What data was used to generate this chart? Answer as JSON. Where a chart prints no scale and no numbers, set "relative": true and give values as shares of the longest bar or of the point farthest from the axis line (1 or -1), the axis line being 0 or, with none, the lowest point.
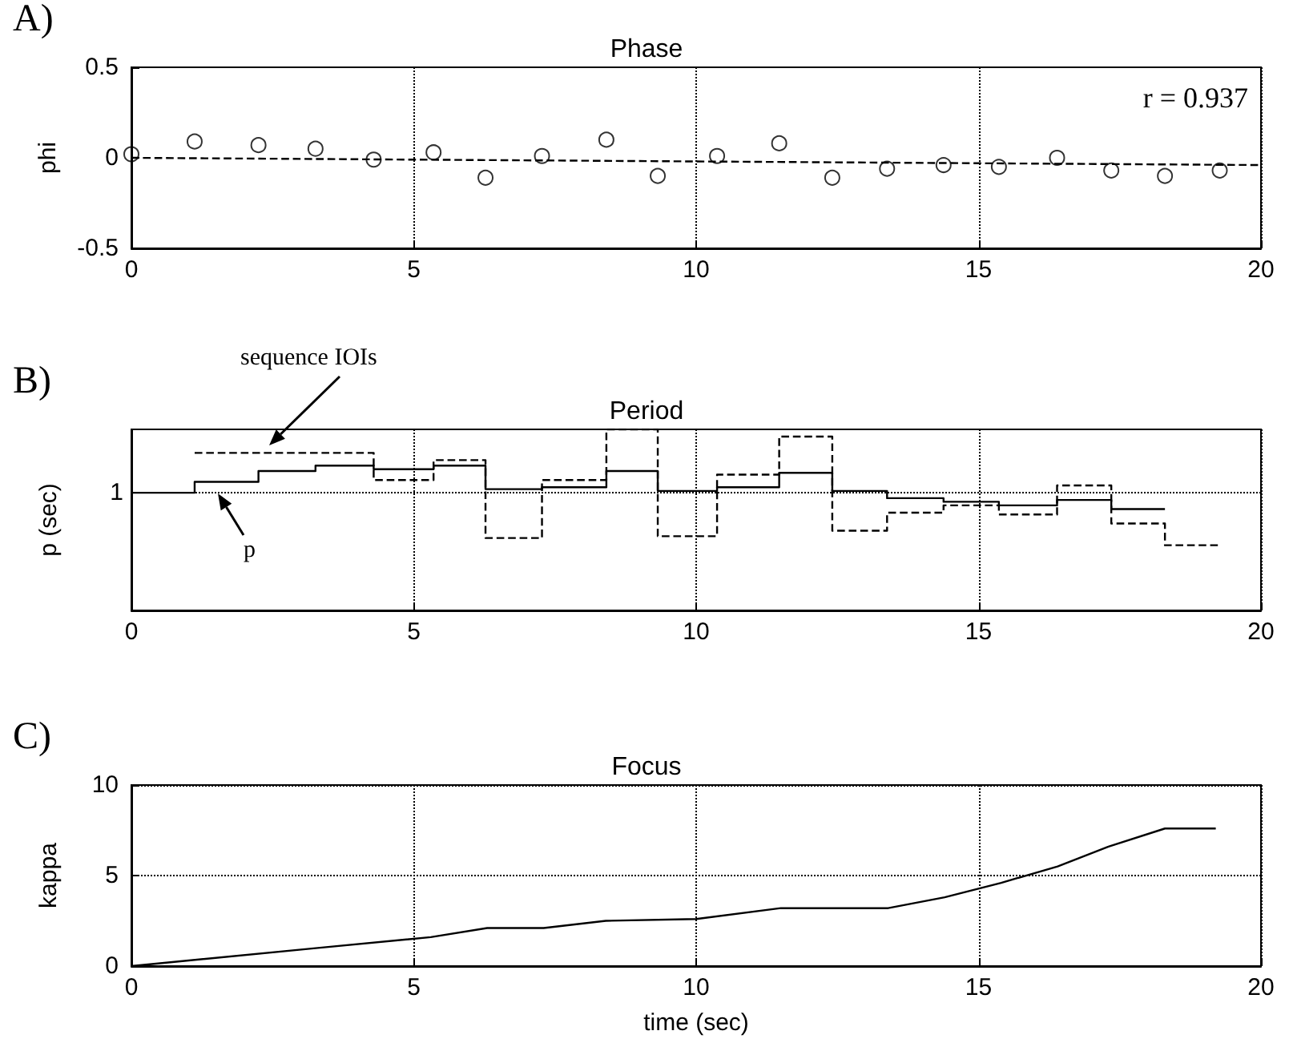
{
  "chart_data": [
    {
      "type": "scatter",
      "title": "Phase",
      "ylabel": "phi",
      "xlim": [
        0,
        20
      ],
      "xticks": [
        0,
        5,
        10,
        15,
        20
      ],
      "ylim": [
        -0.5,
        0.5
      ],
      "yticks": [
        -0.5,
        0,
        0.5
      ],
      "grid": "x",
      "marker": "circle",
      "annotations": [
        "A)",
        "r = 0.937"
      ],
      "x": [
        0,
        1.12,
        2.25,
        3.26,
        4.29,
        5.35,
        6.27,
        7.27,
        8.41,
        9.32,
        10.37,
        11.47,
        12.41,
        13.38,
        14.38,
        15.36,
        16.39,
        17.35,
        18.3,
        19.27
      ],
      "series": [
        {
          "color": "#000000",
          "values": [
            0.02,
            0.09,
            0.07,
            0.05,
            -0.01,
            0.03,
            -0.11,
            0.01,
            0.1,
            -0.1,
            0.01,
            0.08,
            -0.11,
            -0.06,
            -0.04,
            -0.05,
            0,
            -0.07,
            -0.1,
            -0.07
          ]
        },
        {
          "type": "line",
          "color": "#000000",
          "marker": "none",
          "line_style": "dashed",
          "x": [
            0,
            20
          ],
          "values": [
            0,
            -0.04
          ]
        }
      ]
    },
    {
      "type": "step",
      "title": "Period",
      "ylabel": "p (sec)",
      "relative": true,
      "xlim": [
        0,
        20
      ],
      "xticks": [
        0,
        5,
        10,
        15,
        20
      ],
      "grid": "x",
      "marker": "none",
      "annotations": [
        "B)",
        "sequence IOIs",
        "p"
      ],
      "ref_lines": [
        {
          "axis": "y",
          "value": 0.65,
          "label": "1",
          "line_style": "dotted",
          "color": "#000000"
        }
      ],
      "series": [
        {
          "color": "#000000",
          "line_style": "solid",
          "x": [
            0,
            1.12,
            2.25,
            3.26,
            4.29,
            5.35,
            6.27,
            7.27,
            8.41,
            9.32,
            10.37,
            11.47,
            12.41,
            13.38,
            14.38,
            15.36,
            16.39,
            17.35,
            18.3
          ],
          "values": [
            0.65,
            0.71,
            0.77,
            0.8,
            0.78,
            0.8,
            0.67,
            0.68,
            0.77,
            0.66,
            0.68,
            0.76,
            0.66,
            0.62,
            0.6,
            0.58,
            0.61,
            0.56,
            0.56
          ]
        },
        {
          "color": "#000000",
          "line_style": "dashed",
          "x": [
            1.12,
            2.25,
            3.26,
            4.29,
            5.35,
            6.27,
            7.27,
            8.41,
            9.32,
            10.37,
            11.47,
            12.41,
            13.38,
            14.38,
            15.36,
            16.39,
            17.35,
            18.3,
            19.27
          ],
          "values": [
            0.87,
            0.87,
            0.87,
            0.72,
            0.83,
            0.4,
            0.72,
            1,
            0.41,
            0.75,
            0.96,
            0.44,
            0.54,
            0.58,
            0.53,
            0.69,
            0.48,
            0.36,
            0.36
          ]
        }
      ]
    },
    {
      "type": "line",
      "title": "Focus",
      "xlabel": "time (sec)",
      "ylabel": "kappa",
      "xlim": [
        0,
        20
      ],
      "xticks": [
        0,
        5,
        10,
        15,
        20
      ],
      "ylim": [
        0,
        10
      ],
      "yticks": [
        0,
        5,
        10
      ],
      "grid": true,
      "marker": "none",
      "line_style": "solid",
      "annotations": [
        "C)"
      ],
      "x": [
        0,
        3.3,
        5.3,
        6.3,
        7.3,
        8.4,
        10,
        11.5,
        13.4,
        14.4,
        15.4,
        16.4,
        17.3,
        18.3,
        19.2
      ],
      "series": [
        {
          "color": "#000000",
          "values": [
            0,
            1,
            1.6,
            2.1,
            2.1,
            2.5,
            2.6,
            3.2,
            3.2,
            3.8,
            4.6,
            5.5,
            6.6,
            7.6,
            7.6
          ]
        }
      ]
    }
  ]
}
